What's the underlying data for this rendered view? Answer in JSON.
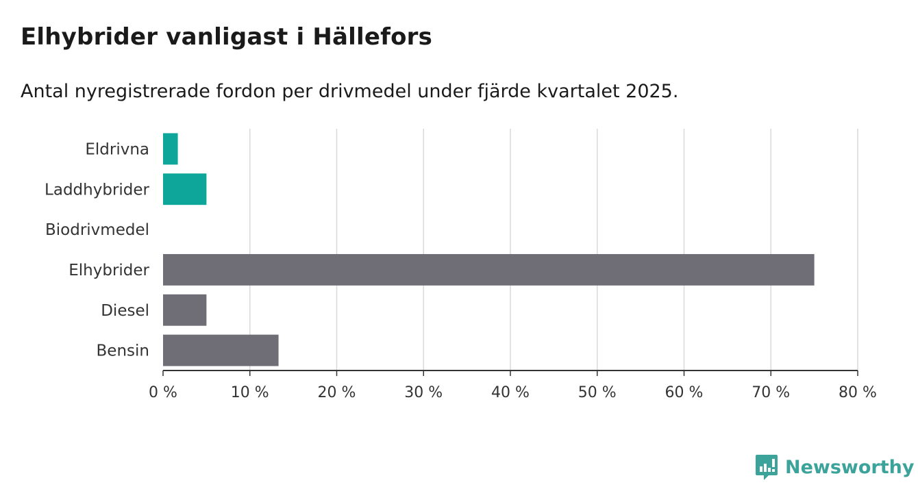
{
  "header": {
    "title": "Elhybrider vanligast i Hällefors",
    "subtitle": "Antal nyregistrerade fordon per drivmedel under fjärde kvartalet 2025."
  },
  "brand": {
    "name": "Newsworthy",
    "icon": "newsworthy-logo-icon",
    "color": "#3ba39a"
  },
  "chart_data": {
    "type": "bar",
    "orientation": "horizontal",
    "categories": [
      "Eldrivna",
      "Laddhybrider",
      "Biodrivmedel",
      "Elhybrider",
      "Diesel",
      "Bensin"
    ],
    "values": [
      1.7,
      5.0,
      0,
      75.0,
      5.0,
      13.3
    ],
    "bar_colors": [
      "#0ea69a",
      "#0ea69a",
      "#0ea69a",
      "#6f6e76",
      "#6f6e76",
      "#6f6e76"
    ],
    "xlim": [
      0,
      80
    ],
    "xticks": [
      0,
      10,
      20,
      30,
      40,
      50,
      60,
      70,
      80
    ],
    "xtick_labels": [
      "0 %",
      "10 %",
      "20 %",
      "30 %",
      "40 %",
      "50 %",
      "60 %",
      "70 %",
      "80 %"
    ],
    "grid": true,
    "title": "Elhybrider vanligast i Hällefors",
    "xlabel": "",
    "ylabel": ""
  }
}
